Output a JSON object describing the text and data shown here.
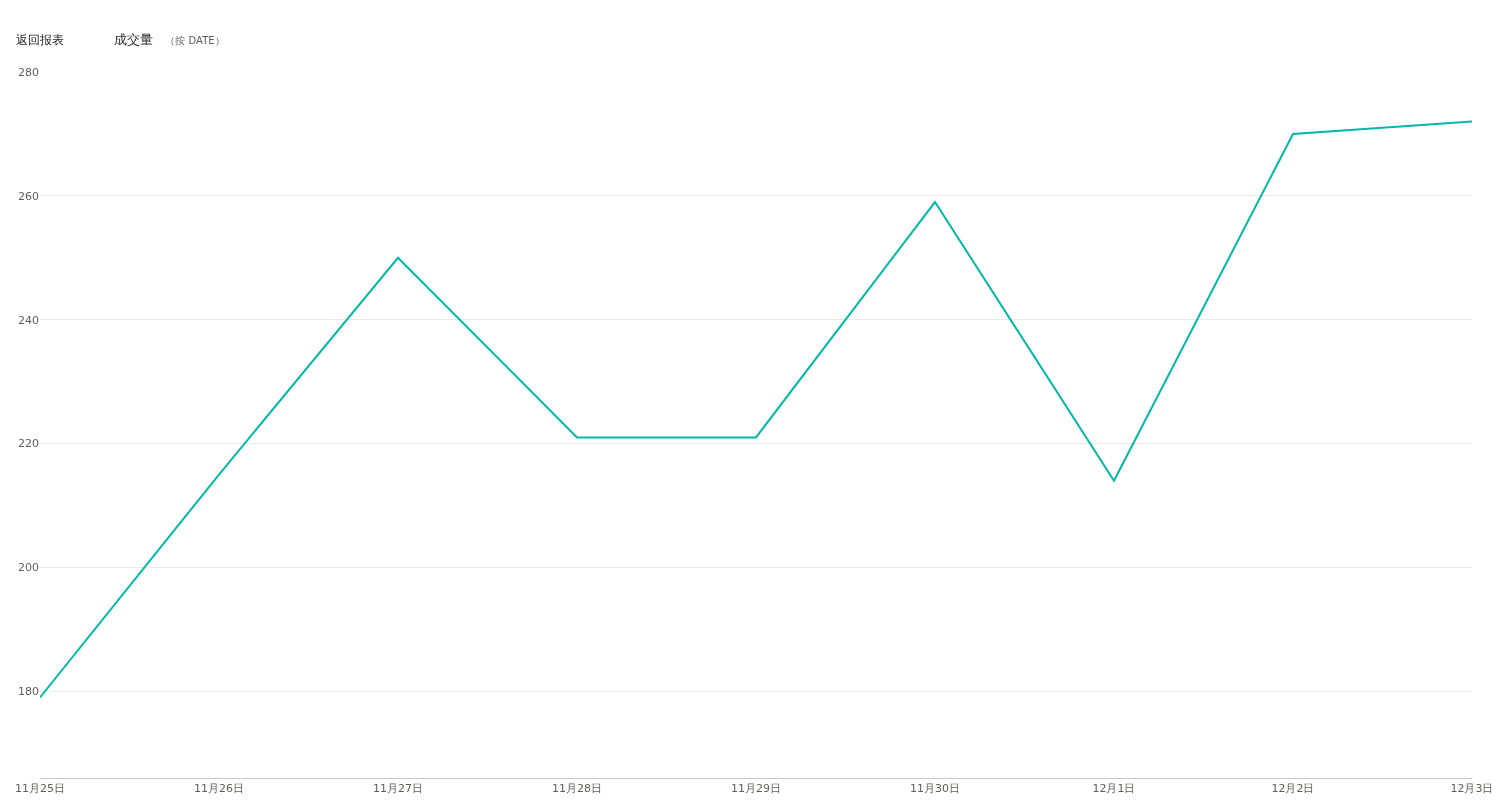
{
  "chart_data": {
    "type": "line",
    "title": "成交量",
    "subtitle": "（按 DATE）",
    "annotations": [
      "返回报表"
    ],
    "categories": [
      "11月25日",
      "11月26日",
      "11月27日",
      "11月28日",
      "11月29日",
      "11月30日",
      "12月1日",
      "12月2日",
      "12月3日"
    ],
    "series": [
      {
        "color": "#01b8aa",
        "values": [
          179,
          215,
          250,
          221,
          221,
          259,
          214,
          270,
          272
        ]
      }
    ],
    "ylim": [
      166,
      280
    ],
    "yticks": [
      180,
      200,
      220,
      240,
      260,
      280
    ],
    "grid": "y",
    "marker": "none",
    "line_style": "solid"
  }
}
